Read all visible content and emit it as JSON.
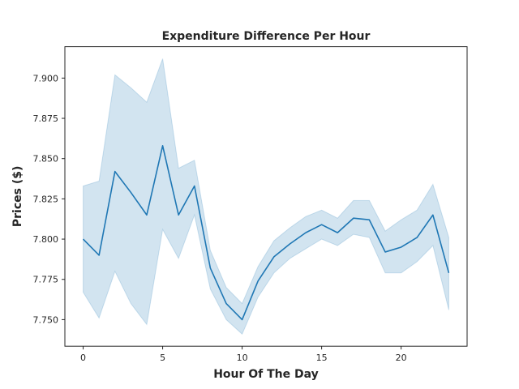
{
  "chart_data": {
    "type": "line",
    "title": "Expenditure Difference Per Hour",
    "xlabel": "Hour Of The Day",
    "ylabel": "Prices ($)",
    "xlim": [
      -1.15,
      24.15
    ],
    "ylim": [
      7.7335,
      7.9195
    ],
    "xticks": [
      0,
      5,
      10,
      15,
      20
    ],
    "yticks": [
      7.75,
      7.775,
      7.8,
      7.825,
      7.85,
      7.875,
      7.9
    ],
    "ytick_labels": [
      "7.750",
      "7.775",
      "7.800",
      "7.825",
      "7.850",
      "7.875",
      "7.900"
    ],
    "grid": false,
    "line_color": "#1f77b4",
    "band_color": "#1f77b4",
    "series": [
      {
        "x": [
          0,
          1,
          2,
          3,
          4,
          5,
          6,
          7,
          8,
          9,
          10,
          11,
          12,
          13,
          14,
          15,
          16,
          17,
          18,
          19,
          20,
          21,
          22,
          23
        ],
        "values": [
          7.8,
          7.79,
          7.842,
          7.829,
          7.815,
          7.858,
          7.815,
          7.833,
          7.782,
          7.76,
          7.75,
          7.774,
          7.789,
          7.797,
          7.804,
          7.809,
          7.804,
          7.813,
          7.812,
          7.792,
          7.795,
          7.801,
          7.815,
          7.779
        ],
        "ci_upper": [
          7.833,
          7.836,
          7.902,
          7.894,
          7.885,
          7.912,
          7.844,
          7.849,
          7.793,
          7.77,
          7.76,
          7.783,
          7.799,
          7.807,
          7.814,
          7.818,
          7.813,
          7.824,
          7.824,
          7.805,
          7.812,
          7.818,
          7.834,
          7.801
        ],
        "ci_lower": [
          7.767,
          7.751,
          7.78,
          7.76,
          7.747,
          7.806,
          7.788,
          7.815,
          7.769,
          7.75,
          7.741,
          7.764,
          7.779,
          7.788,
          7.794,
          7.8,
          7.796,
          7.803,
          7.801,
          7.779,
          7.779,
          7.786,
          7.796,
          7.756
        ]
      }
    ]
  }
}
